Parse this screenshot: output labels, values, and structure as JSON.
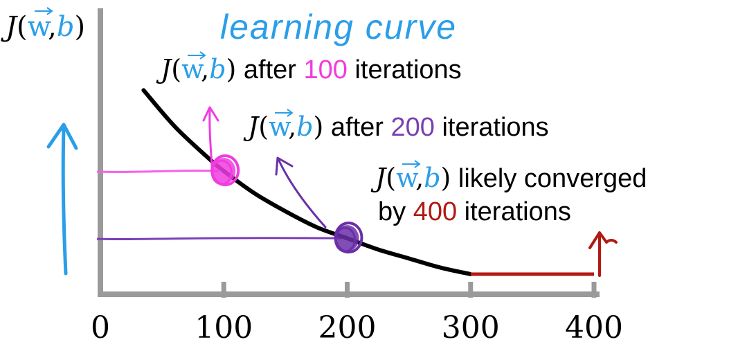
{
  "chart_data": {
    "type": "line",
    "title": "learning curve",
    "ylabel": {
      "j": "J",
      "open": "(",
      "w": "w",
      "comma": ",",
      "b": "b",
      "close": ")"
    },
    "xlabel": "",
    "xlim": [
      0,
      400
    ],
    "x_ticks": [
      0,
      100,
      200,
      300,
      400
    ],
    "x_tick_labels": [
      "0",
      "100",
      "200",
      "300",
      "400"
    ],
    "series": [
      {
        "x": [
          35,
          60,
          85,
          100,
          125,
          150,
          175,
          200,
          225,
          250,
          275,
          300
        ],
        "y": [
          0.82,
          0.66,
          0.53,
          0.46,
          0.36,
          0.28,
          0.21,
          0.16,
          0.11,
          0.07,
          0.03,
          0.0
        ]
      }
    ],
    "converged_segment": {
      "x": [
        300,
        400
      ]
    },
    "markers": [
      {
        "x": 100,
        "y": 0.46,
        "color": "#f03ce0",
        "line_color": "#f560eb"
      },
      {
        "x": 200,
        "y": 0.16,
        "color": "#6a2fa8",
        "line_color": "#7a3fb8"
      }
    ],
    "annotations": [
      {
        "j": "J",
        "open": "(",
        "w": "w",
        "comma": ",",
        "b": "b",
        "close": ")",
        "text_before": " after ",
        "num": "100",
        "text_after": " iterations",
        "num_color": "#f03ce0"
      },
      {
        "j": "J",
        "open": "(",
        "w": "w",
        "comma": ",",
        "b": "b",
        "close": ")",
        "text_before": " after ",
        "num": "200",
        "text_after": " iterations",
        "num_color": "#7a3fb0"
      },
      {
        "j": "J",
        "open": "(",
        "w": "w",
        "comma": ",",
        "b": "b",
        "close": ")",
        "text_before": " likely converged",
        "line2_before": "by ",
        "num": "400",
        "text_after": " iterations",
        "num_color": "#b01a12"
      }
    ],
    "colors": {
      "axis": "#9a9a9a",
      "curve": "#000000",
      "blue": "#2a9ee8",
      "magenta": "#f03ce0",
      "purple": "#6a2fa8",
      "red": "#b01a12"
    }
  }
}
